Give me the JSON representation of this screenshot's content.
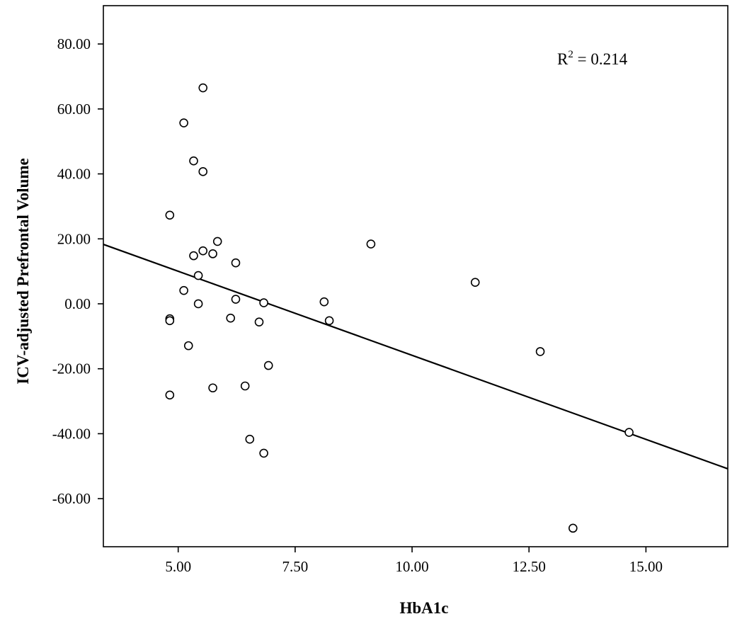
{
  "chart_data": {
    "type": "scatter",
    "title": "",
    "xlabel": "HbA1c",
    "ylabel": "ICV-adjusted Prefrontal Volume",
    "xlim": [
      3.4,
      16.75
    ],
    "ylim": [
      -74.8,
      91.8
    ],
    "xticks": [
      5.0,
      7.5,
      10.0,
      12.5,
      15.0
    ],
    "xtick_labels": [
      "5.00",
      "7.50",
      "10.00",
      "12.50",
      "15.00"
    ],
    "yticks": [
      80,
      60,
      40,
      20,
      0,
      -20,
      -40,
      -60
    ],
    "ytick_labels": [
      "80.00",
      "60.00",
      "40.00",
      "20.00",
      "0.00",
      "-20.00",
      "-40.00",
      "-60.00"
    ],
    "grid": false,
    "marker": "open-circle",
    "points": [
      {
        "x": 5.53,
        "y": 66.5
      },
      {
        "x": 5.12,
        "y": 55.7
      },
      {
        "x": 5.33,
        "y": 44.0
      },
      {
        "x": 5.53,
        "y": 40.7
      },
      {
        "x": 4.82,
        "y": 27.3
      },
      {
        "x": 5.84,
        "y": 19.2
      },
      {
        "x": 9.12,
        "y": 18.4
      },
      {
        "x": 5.53,
        "y": 16.3
      },
      {
        "x": 5.74,
        "y": 15.4
      },
      {
        "x": 5.33,
        "y": 14.8
      },
      {
        "x": 6.23,
        "y": 12.6
      },
      {
        "x": 5.43,
        "y": 8.7
      },
      {
        "x": 11.35,
        "y": 6.6
      },
      {
        "x": 5.12,
        "y": 4.1
      },
      {
        "x": 6.23,
        "y": 1.4
      },
      {
        "x": 8.12,
        "y": 0.6
      },
      {
        "x": 6.83,
        "y": 0.3
      },
      {
        "x": 5.43,
        "y": 0.0
      },
      {
        "x": 6.12,
        "y": -4.4
      },
      {
        "x": 4.82,
        "y": -4.6
      },
      {
        "x": 4.82,
        "y": -5.2
      },
      {
        "x": 8.23,
        "y": -5.2
      },
      {
        "x": 6.73,
        "y": -5.6
      },
      {
        "x": 5.22,
        "y": -12.9
      },
      {
        "x": 12.74,
        "y": -14.7
      },
      {
        "x": 6.93,
        "y": -19.0
      },
      {
        "x": 6.43,
        "y": -25.3
      },
      {
        "x": 5.74,
        "y": -25.9
      },
      {
        "x": 4.82,
        "y": -28.1
      },
      {
        "x": 14.64,
        "y": -39.6
      },
      {
        "x": 6.53,
        "y": -41.7
      },
      {
        "x": 6.83,
        "y": -46.0
      },
      {
        "x": 13.44,
        "y": -69.1
      }
    ],
    "fit_line": {
      "type": "linear",
      "x": [
        3.4,
        16.75
      ],
      "y": [
        18.3,
        -50.8
      ],
      "r2_label": "R",
      "r2_superscript": "2",
      "r2_value_text": " = 0.214",
      "r2": 0.214
    },
    "colors": {
      "marker_stroke": "#000000",
      "marker_fill": "#ffffff",
      "line": "#000000",
      "axis": "#000000",
      "background": "#ffffff"
    }
  }
}
